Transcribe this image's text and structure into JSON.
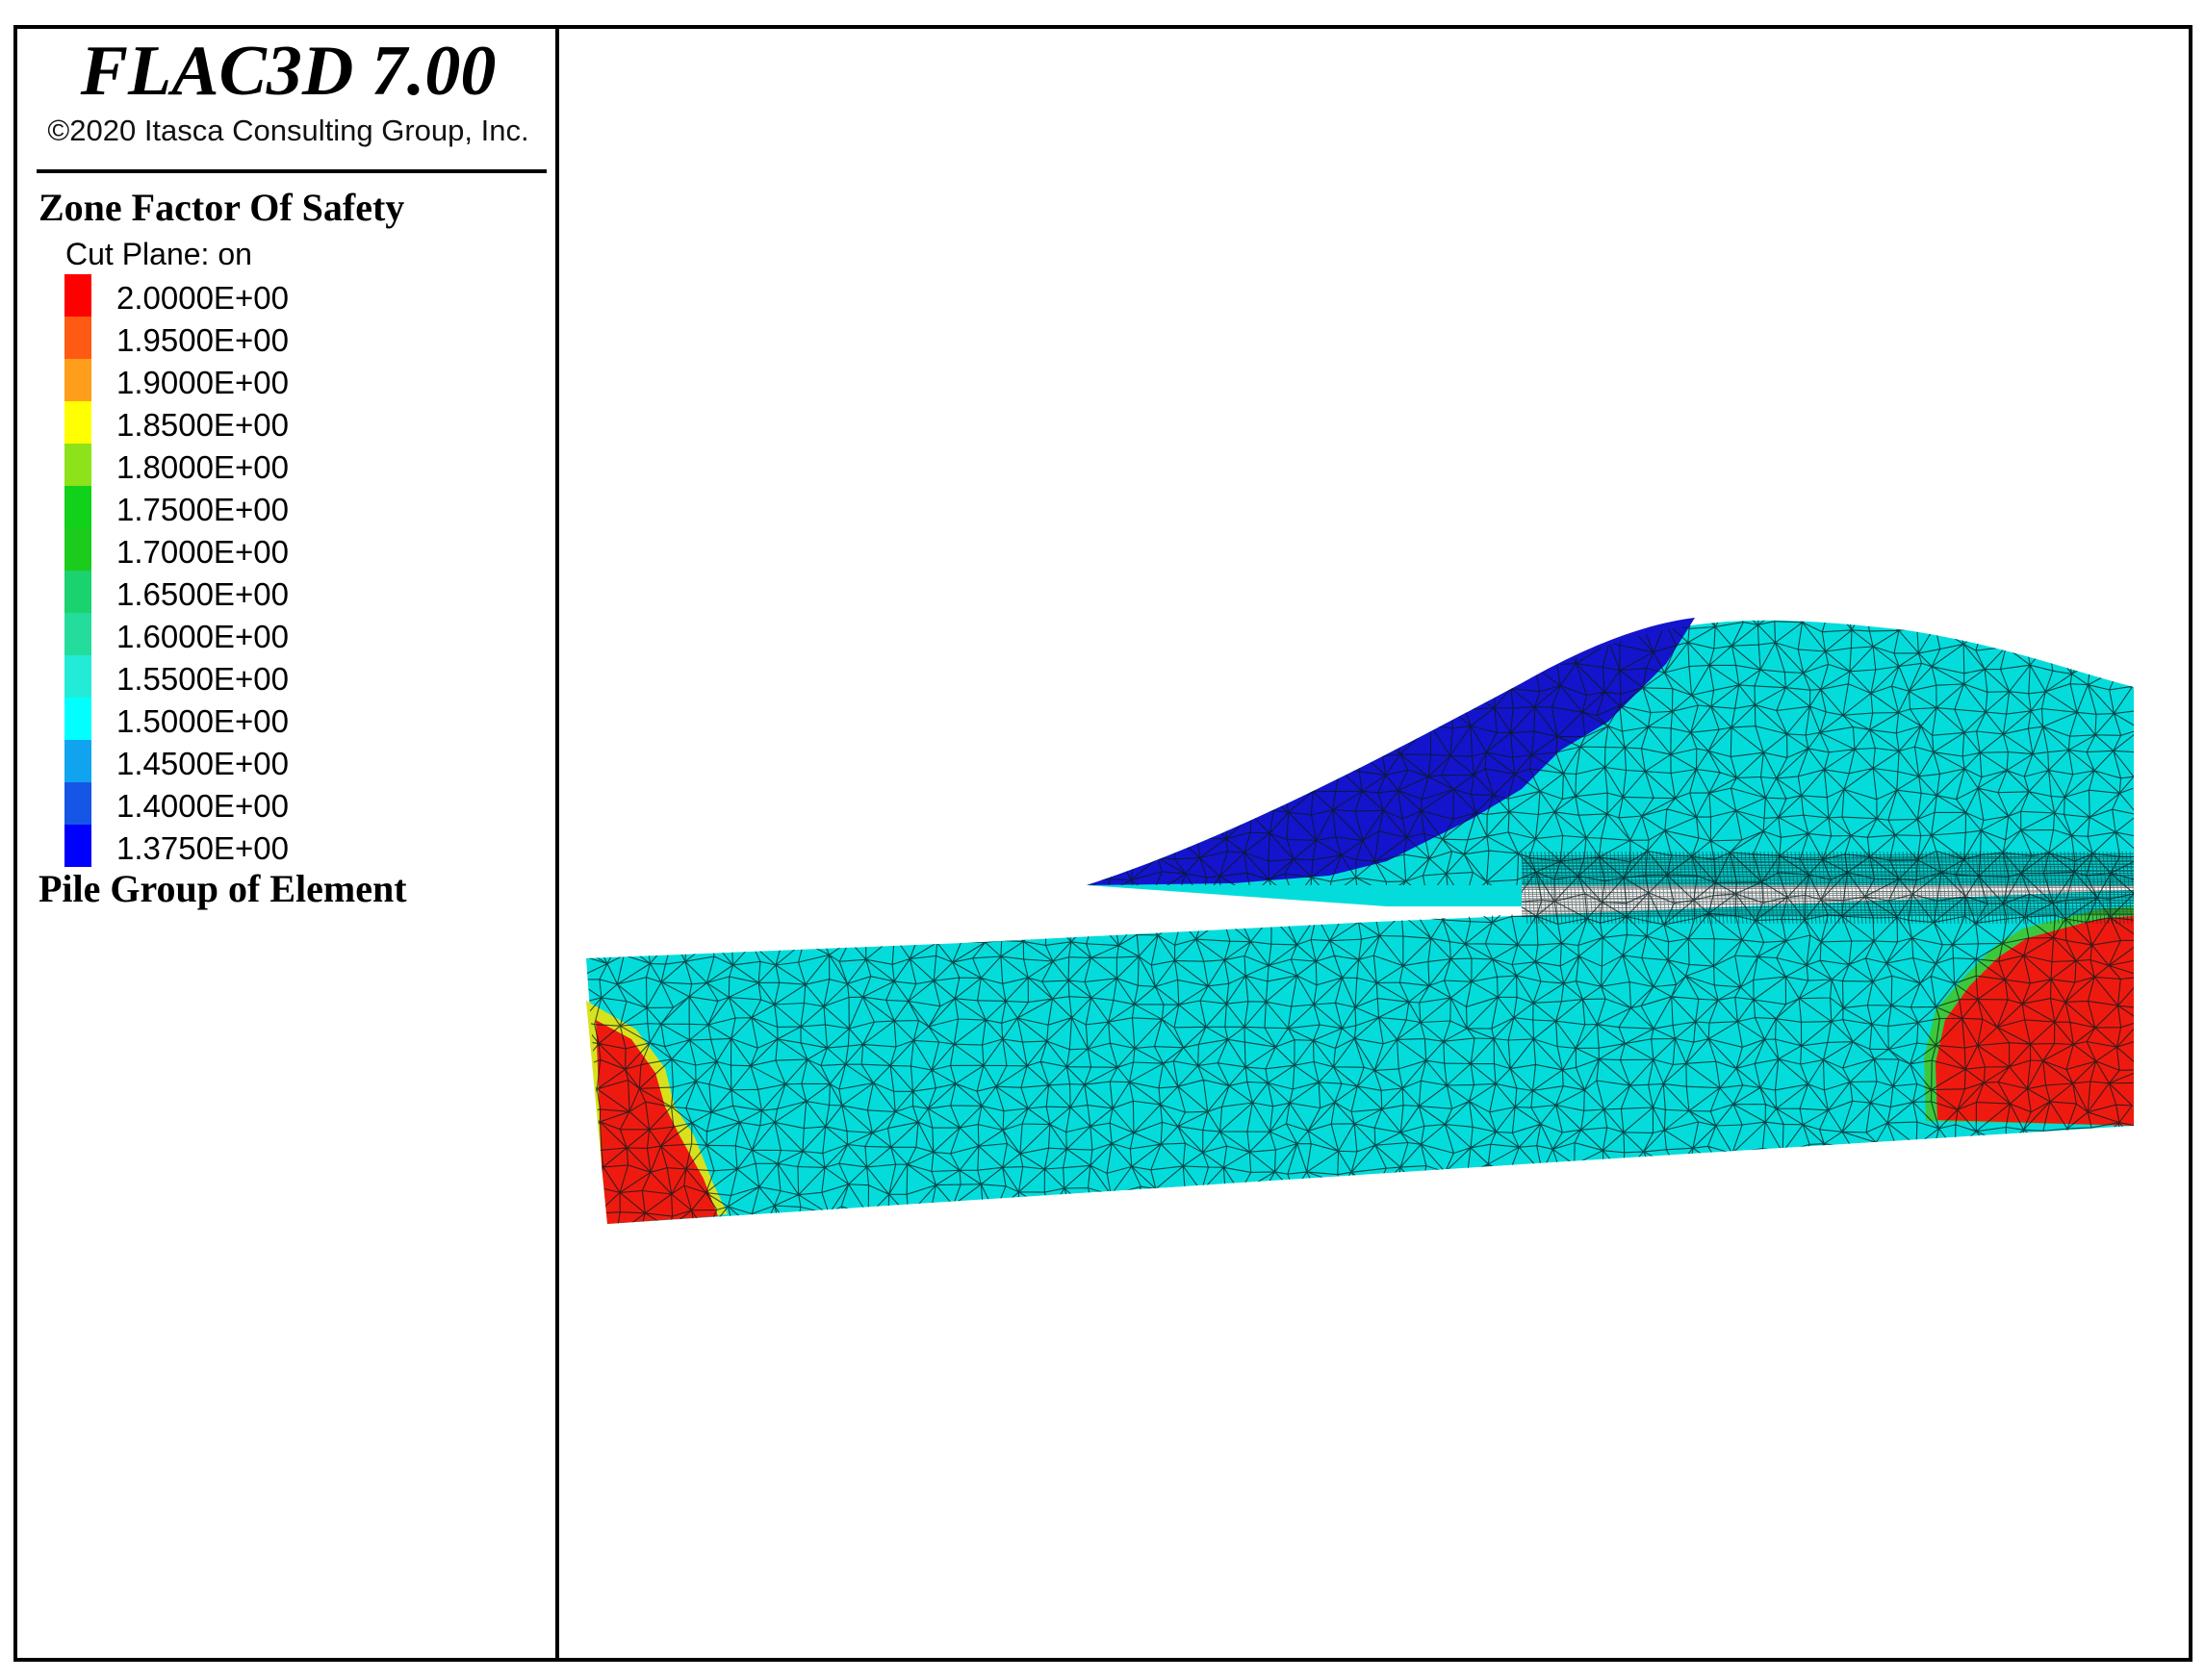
{
  "header": {
    "app_title": "FLAC3D 7.00",
    "copyright": "©2020 Itasca Consulting Group, Inc."
  },
  "legend": {
    "title": "Zone Factor Of Safety",
    "cut_plane": "Cut Plane: on",
    "items": [
      {
        "label": "2.0000E+00",
        "color": "#ff0000"
      },
      {
        "label": "1.9500E+00",
        "color": "#ff5a14"
      },
      {
        "label": "1.9000E+00",
        "color": "#ff9e1a"
      },
      {
        "label": "1.8500E+00",
        "color": "#ffff00"
      },
      {
        "label": "1.8000E+00",
        "color": "#8ee21a"
      },
      {
        "label": "1.7500E+00",
        "color": "#11d11a"
      },
      {
        "label": "1.7000E+00",
        "color": "#1ccc1c"
      },
      {
        "label": "1.6500E+00",
        "color": "#1ad26e"
      },
      {
        "label": "1.6000E+00",
        "color": "#24dc9c"
      },
      {
        "label": "1.5500E+00",
        "color": "#22ecd8"
      },
      {
        "label": "1.5000E+00",
        "color": "#00ffff"
      },
      {
        "label": "1.4500E+00",
        "color": "#10a4f0"
      },
      {
        "label": "1.4000E+00",
        "color": "#1656e6"
      },
      {
        "label": "1.3750E+00",
        "color": "#0000ff"
      }
    ],
    "section2_title": "Pile Group of Element"
  },
  "model": {
    "colors": {
      "cyan": "#04dcdc",
      "red": "#ee1a10",
      "blue": "#1414cc",
      "green": "#3cc83c",
      "yellow": "#d8e21c",
      "mesh": "#0a1a1a"
    }
  }
}
